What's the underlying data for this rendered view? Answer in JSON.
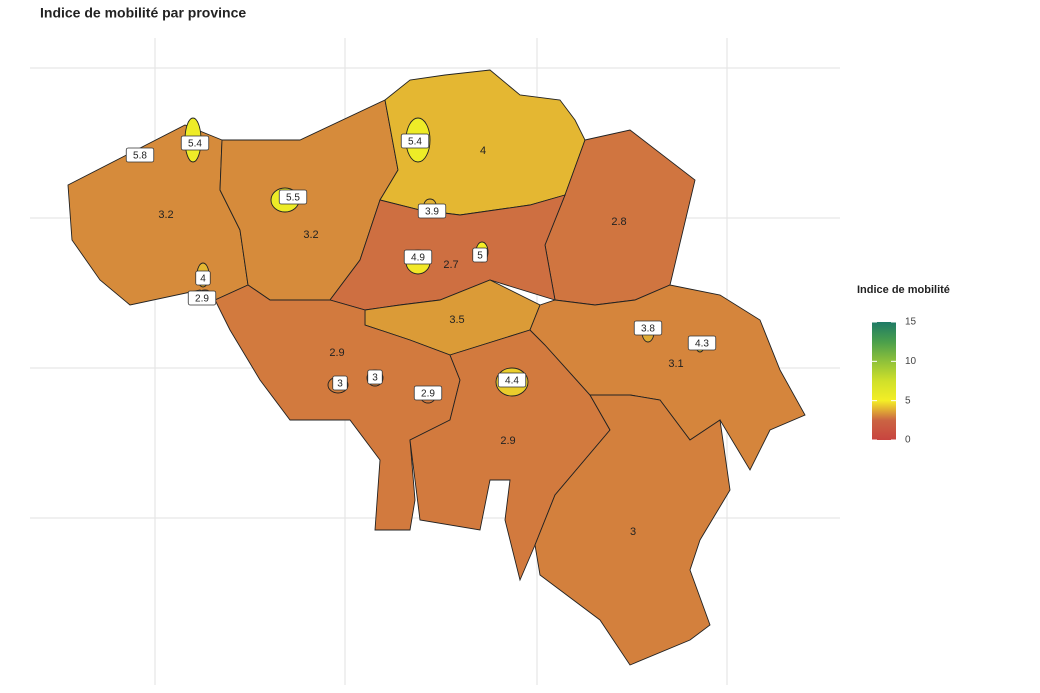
{
  "chart_data": {
    "type": "choropleth",
    "title": "Indice de mobilité par province",
    "legend_title": "Indice de mobilité",
    "clim": [
      0,
      15
    ],
    "cticks": [
      0,
      5,
      10,
      15
    ],
    "colors": [
      "#c8443f",
      "#cb6443",
      "#f4ee26",
      "#d0e02a",
      "#8fc13a",
      "#4a9f4c",
      "#1e7a66"
    ],
    "provinces": {
      "values": [
        3.2,
        3.2,
        4,
        2.8,
        2.7,
        3.5,
        2.9,
        2.9,
        3.1,
        3
      ]
    },
    "cities": {
      "values": [
        5.8,
        5.4,
        5.5,
        5.4,
        3.9,
        4.9,
        5,
        4,
        2.9,
        3.8,
        4.3,
        3,
        3,
        2.9,
        4.4
      ]
    }
  }
}
